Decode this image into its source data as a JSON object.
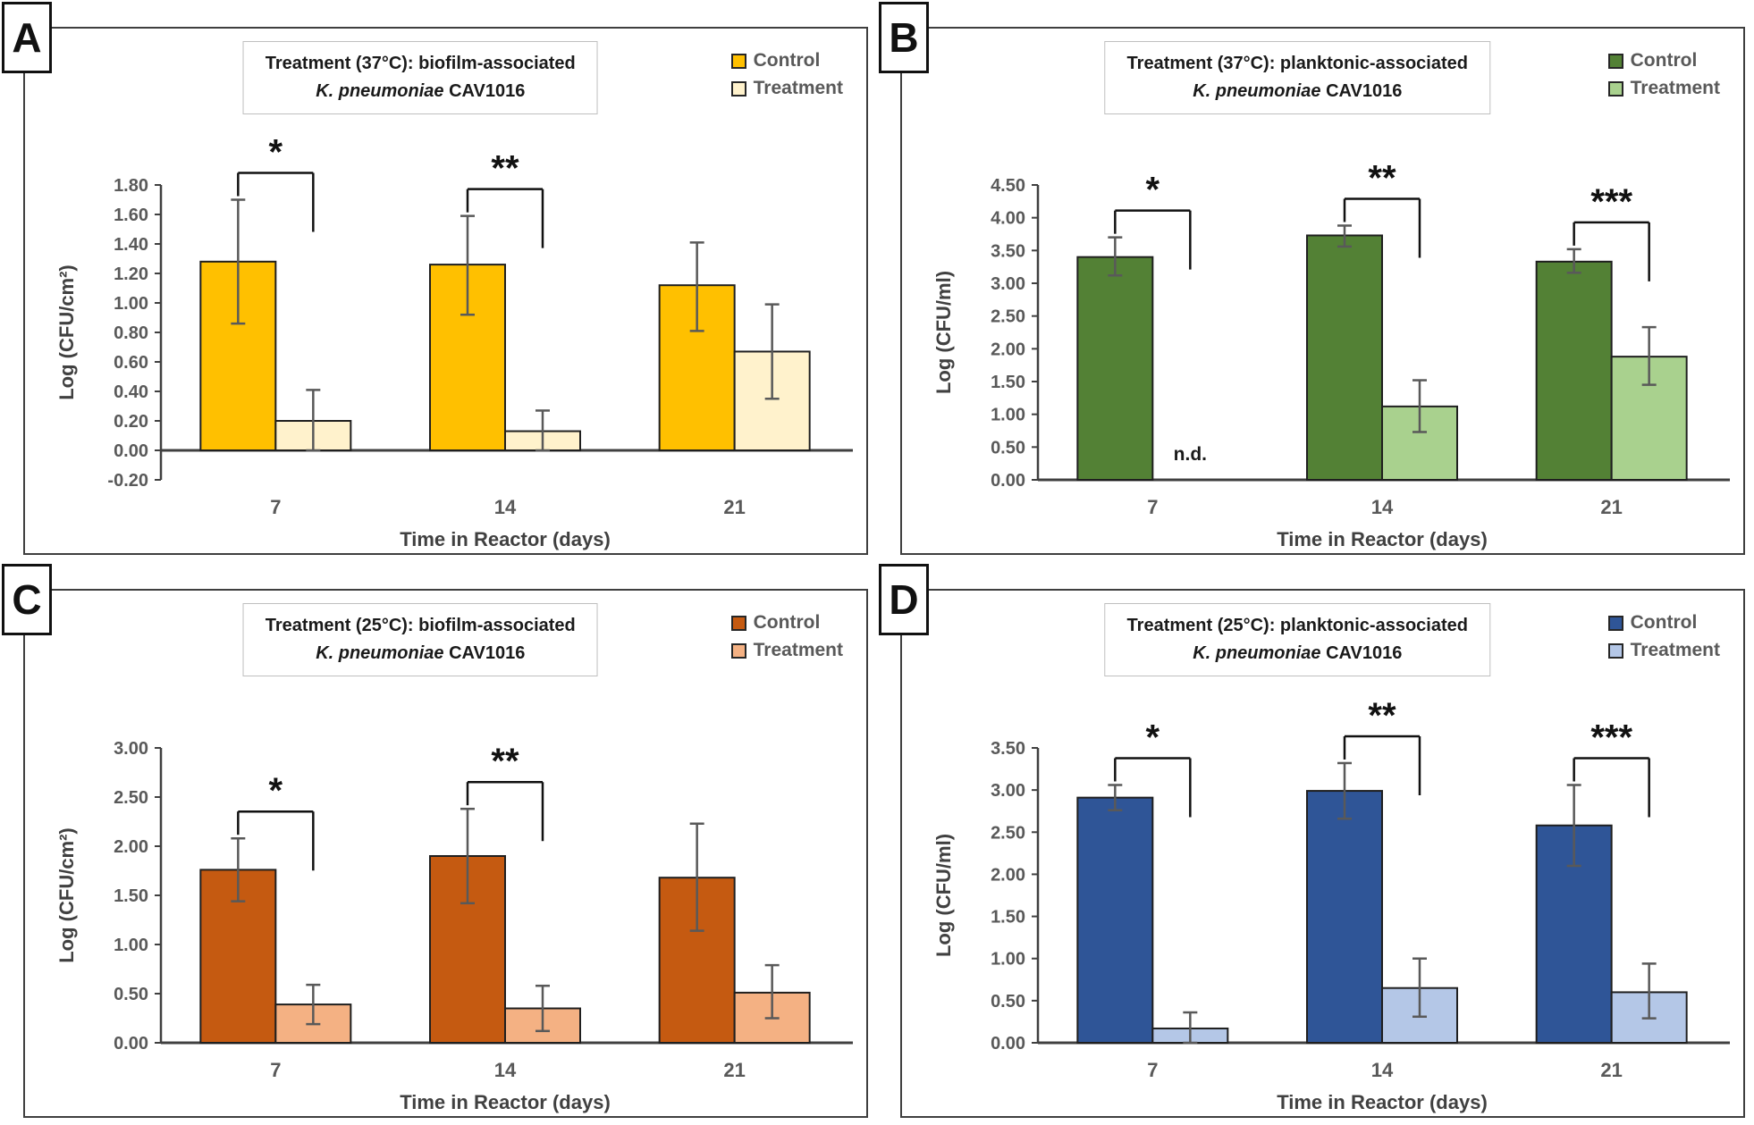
{
  "legend": {
    "control_label": "Control",
    "treatment_label": "Treatment"
  },
  "shared": {
    "xlabel": "Time in Reactor (days)",
    "categories": [
      "7",
      "14",
      "21"
    ],
    "colors": {
      "panel_border": "#3f3f3f",
      "axis_line": "#404040",
      "bar_stroke": "#1f1f1f",
      "error_bar": "#595959",
      "tick_text": "#595959",
      "axis_title_text": "#404040",
      "title_text": "#1a1a1a",
      "annotation_text": "#1a1a1a"
    }
  },
  "chart_data": [
    {
      "type": "bar",
      "panel_label": "A",
      "title_line1": "Treatment (37°C): biofilm-associated",
      "title_line2_italic": "K. pneumoniae",
      "title_line2_regular": "CAV1016",
      "ylabel": "Log (CFU/cm²)",
      "xlabel": "Time in Reactor (days)",
      "categories": [
        "7",
        "14",
        "21"
      ],
      "ylim": [
        -0.2,
        1.8
      ],
      "ytick_step": 0.2,
      "ytick_labels": [
        "1.80",
        "1.60",
        "1.40",
        "1.20",
        "1.00",
        "0.80",
        "0.60",
        "0.40",
        "0.20",
        "0.00",
        "-0.20"
      ],
      "series": [
        {
          "name": "Control",
          "color": "#FFC000",
          "values": [
            1.28,
            1.26,
            1.12
          ],
          "err_low": [
            0.86,
            0.92,
            0.81
          ],
          "err_high": [
            1.7,
            1.59,
            1.41
          ]
        },
        {
          "name": "Treatment",
          "color": "#FFF2CC",
          "values": [
            0.2,
            0.13,
            0.67
          ],
          "err_low": [
            0.0,
            0.0,
            0.35
          ],
          "err_high": [
            0.41,
            0.27,
            0.99
          ]
        }
      ],
      "significance": [
        "*",
        "**",
        ""
      ],
      "nd_labels": [
        "",
        "",
        ""
      ]
    },
    {
      "type": "bar",
      "panel_label": "B",
      "title_line1": "Treatment (37°C): planktonic-associated",
      "title_line2_italic": "K. pneumoniae",
      "title_line2_regular": "CAV1016",
      "ylabel": "Log (CFU/ml)",
      "xlabel": "Time in Reactor (days)",
      "categories": [
        "7",
        "14",
        "21"
      ],
      "ylim": [
        0.0,
        4.5
      ],
      "ytick_step": 0.5,
      "ytick_labels": [
        "4.50",
        "4.00",
        "3.50",
        "3.00",
        "2.50",
        "2.00",
        "1.50",
        "1.00",
        "0.50",
        "0.00"
      ],
      "series": [
        {
          "name": "Control",
          "color": "#538135",
          "values": [
            3.4,
            3.73,
            3.33
          ],
          "err_low": [
            3.12,
            3.56,
            3.16
          ],
          "err_high": [
            3.7,
            3.88,
            3.52
          ]
        },
        {
          "name": "Treatment",
          "color": "#A9D18E",
          "values": [
            null,
            1.12,
            1.88
          ],
          "err_low": [
            null,
            0.73,
            1.45
          ],
          "err_high": [
            null,
            1.52,
            2.33
          ]
        }
      ],
      "significance": [
        "*",
        "**",
        "***"
      ],
      "nd_labels": [
        "n.d.",
        "",
        ""
      ]
    },
    {
      "type": "bar",
      "panel_label": "C",
      "title_line1": "Treatment (25°C): biofilm-associated",
      "title_line2_italic": "K. pneumoniae",
      "title_line2_regular": "CAV1016",
      "ylabel": "Log (CFU/cm²)",
      "xlabel": "Time in Reactor (days)",
      "categories": [
        "7",
        "14",
        "21"
      ],
      "ylim": [
        0.0,
        3.0
      ],
      "ytick_step": 0.5,
      "ytick_labels": [
        "3.00",
        "2.50",
        "2.00",
        "1.50",
        "1.00",
        "0.50",
        "0.00"
      ],
      "series": [
        {
          "name": "Control",
          "color": "#C55A11",
          "values": [
            1.76,
            1.9,
            1.68
          ],
          "err_low": [
            1.44,
            1.42,
            1.14
          ],
          "err_high": [
            2.08,
            2.38,
            2.23
          ]
        },
        {
          "name": "Treatment",
          "color": "#F4B183",
          "values": [
            0.39,
            0.35,
            0.51
          ],
          "err_low": [
            0.19,
            0.12,
            0.25
          ],
          "err_high": [
            0.59,
            0.58,
            0.79
          ]
        }
      ],
      "significance": [
        "*",
        "**",
        ""
      ],
      "nd_labels": [
        "",
        "",
        ""
      ]
    },
    {
      "type": "bar",
      "panel_label": "D",
      "title_line1": "Treatment (25°C): planktonic-associated",
      "title_line2_italic": "K. pneumoniae",
      "title_line2_regular": "CAV1016",
      "ylabel": "Log (CFU/ml)",
      "xlabel": "Time in Reactor (days)",
      "categories": [
        "7",
        "14",
        "21"
      ],
      "ylim": [
        0.0,
        3.5
      ],
      "ytick_step": 0.5,
      "ytick_labels": [
        "3.50",
        "3.00",
        "2.50",
        "2.00",
        "1.50",
        "1.00",
        "0.50",
        "0.00"
      ],
      "series": [
        {
          "name": "Control",
          "color": "#2F5597",
          "values": [
            2.91,
            2.99,
            2.58
          ],
          "err_low": [
            2.76,
            2.66,
            2.1
          ],
          "err_high": [
            3.06,
            3.32,
            3.06
          ]
        },
        {
          "name": "Treatment",
          "color": "#B4C7E7",
          "values": [
            0.17,
            0.65,
            0.6
          ],
          "err_low": [
            0.0,
            0.31,
            0.29
          ],
          "err_high": [
            0.36,
            1.0,
            0.94
          ]
        }
      ],
      "significance": [
        "*",
        "**",
        "***"
      ],
      "nd_labels": [
        "",
        "",
        ""
      ]
    }
  ]
}
